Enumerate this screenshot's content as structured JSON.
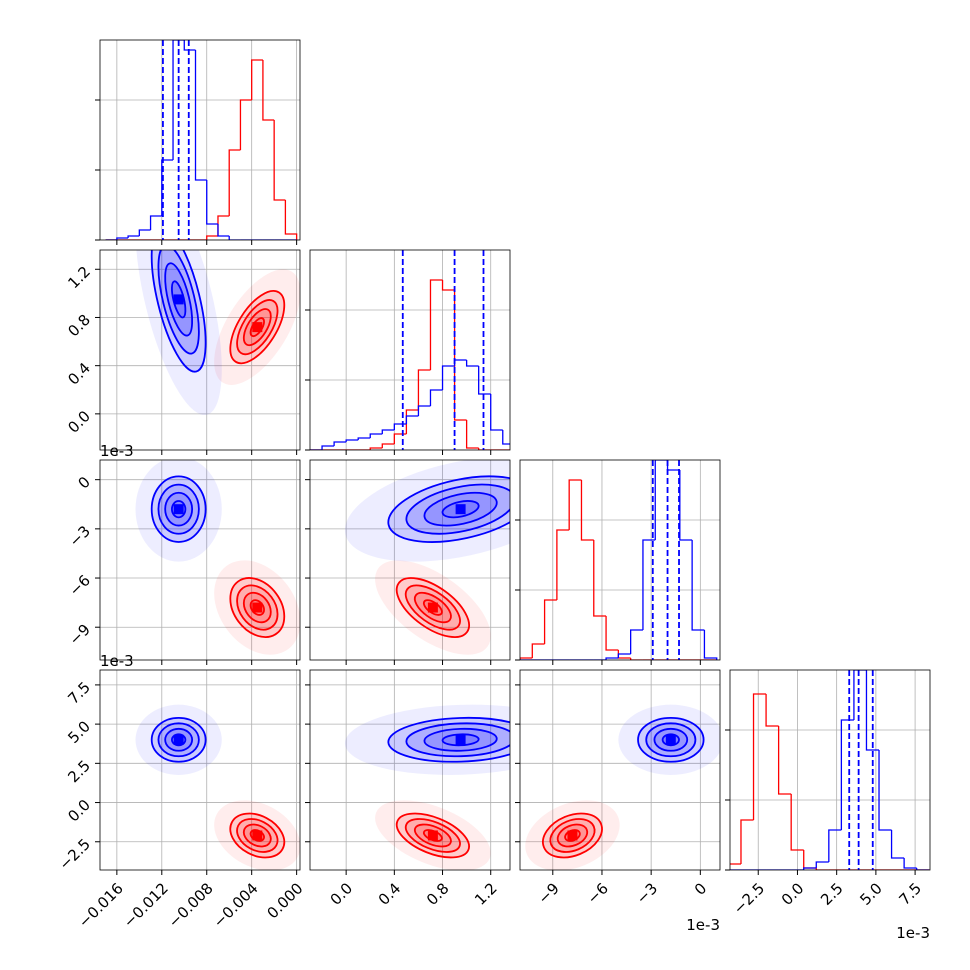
{
  "chart_data": {
    "type": "corner",
    "grid": true,
    "contour_levels": [
      0.5,
      1,
      1.5,
      2
    ],
    "params": [
      {
        "lim": [
          -0.0175,
          0.0003
        ],
        "ticks": [
          {
            "value": -0.016,
            "label": "−0.016"
          },
          {
            "value": -0.012,
            "label": "−0.012"
          },
          {
            "value": -0.008,
            "label": "−0.008"
          },
          {
            "value": -0.004,
            "label": "−0.004"
          },
          {
            "value": 0,
            "label": "0.000"
          }
        ],
        "bins": [
          -0.017,
          -0.016,
          -0.015,
          -0.014,
          -0.013,
          -0.012,
          -0.011,
          -0.01,
          -0.009,
          -0.008,
          -0.007,
          -0.006,
          -0.005,
          -0.004,
          -0.003,
          -0.002,
          -0.001,
          0.0
        ]
      },
      {
        "lim": [
          -0.3,
          1.36
        ],
        "ticks": [
          {
            "value": 0,
            "label": "0.0"
          },
          0.4,
          0.8,
          1.2
        ],
        "bins": [
          -0.3,
          -0.2,
          -0.1,
          0.0,
          0.1,
          0.2,
          0.3,
          0.4,
          0.5,
          0.6,
          0.7,
          0.8,
          0.9,
          1.0,
          1.1,
          1.2,
          1.3,
          1.4
        ]
      },
      {
        "lim": [
          -11,
          1.2
        ],
        "offset_label": "1e-3",
        "ticks": [
          {
            "value": -9,
            "label": "−9"
          },
          {
            "value": -6,
            "label": "−6"
          },
          {
            "value": -3,
            "label": "−3"
          },
          0
        ],
        "bins": [
          -11,
          -10.25,
          -9.5,
          -8.75,
          -8,
          -7.25,
          -6.5,
          -5.75,
          -5,
          -4.25,
          -3.5,
          -2.75,
          -2,
          -1.25,
          -0.5,
          0.25,
          1
        ]
      },
      {
        "lim": [
          -4.3,
          8.45
        ],
        "offset_label": "1e-3",
        "ticks": [
          {
            "value": -2.5,
            "label": "−2.5"
          },
          {
            "value": 0,
            "label": "0.0"
          },
          2.5,
          {
            "value": 5,
            "label": "5.0"
          },
          7.5
        ],
        "bins": [
          -4.4,
          -3.6,
          -2.8,
          -2.0,
          -1.2,
          -0.4,
          0.4,
          1.2,
          2.0,
          2.8,
          3.6,
          4.4,
          5.2,
          6.0,
          6.8,
          7.6,
          8.4
        ]
      }
    ],
    "hist_ylim": [
      0,
      100
    ],
    "hist_yticks": [
      0,
      35,
      70
    ],
    "series": [
      {
        "color": "#ff0000",
        "mean": [
          -0.0035,
          0.72,
          -7.8,
          -2.1
        ],
        "sd": [
          0.0012,
          0.15,
          0.9,
          0.7
        ],
        "corr": [
          [
            1,
            0.6,
            -0.3,
            -0.3
          ],
          [
            0.6,
            1,
            -0.6,
            -0.5
          ],
          [
            -0.3,
            -0.6,
            1,
            0.3
          ],
          [
            -0.3,
            -0.5,
            0.3,
            1
          ]
        ],
        "hist": [
          [
            0,
            0,
            0,
            0,
            0,
            0,
            0,
            0,
            0,
            2,
            12,
            45,
            70,
            90,
            60,
            20,
            3
          ],
          [
            0,
            0,
            0,
            0,
            0,
            1,
            3,
            8,
            20,
            40,
            85,
            80,
            15,
            1,
            0,
            0,
            0
          ],
          [
            1,
            8,
            30,
            65,
            90,
            60,
            22,
            5,
            1,
            0,
            0,
            0,
            0,
            0,
            0,
            0
          ],
          [
            3,
            25,
            88,
            72,
            38,
            10,
            1,
            0,
            0,
            0,
            0,
            0,
            0,
            0,
            0,
            0
          ]
        ]
      },
      {
        "color": "#0000ff",
        "mean": [
          -0.0105,
          0.95,
          -1.8,
          4.0
        ],
        "sd": [
          0.0012,
          0.3,
          1.0,
          0.7
        ],
        "corr": [
          [
            1,
            -0.6,
            0,
            0
          ],
          [
            -0.6,
            1,
            0.4,
            0.1
          ],
          [
            0,
            0.4,
            1,
            0
          ],
          [
            0,
            0.1,
            0,
            1
          ]
        ],
        "hist": [
          [
            0,
            1,
            2,
            5,
            12,
            40,
            100,
            95,
            30,
            8,
            2,
            0,
            0,
            0,
            0,
            0,
            0
          ],
          [
            0,
            2,
            4,
            5,
            6,
            8,
            10,
            13,
            17,
            22,
            30,
            42,
            45,
            42,
            28,
            10,
            3
          ],
          [
            0,
            0,
            0,
            0,
            0,
            0,
            0,
            1,
            3,
            15,
            60,
            100,
            95,
            60,
            15,
            1
          ],
          [
            0,
            0,
            0,
            0,
            0,
            0,
            1,
            4,
            20,
            75,
            100,
            60,
            20,
            6,
            1,
            0
          ]
        ],
        "quantiles": [
          [
            -0.0119,
            -0.0105,
            -0.0096
          ],
          [
            0.47,
            0.9,
            1.14
          ],
          [
            -2.9,
            -2.0,
            -1.3
          ],
          [
            3.3,
            3.9,
            4.8
          ]
        ]
      }
    ]
  }
}
